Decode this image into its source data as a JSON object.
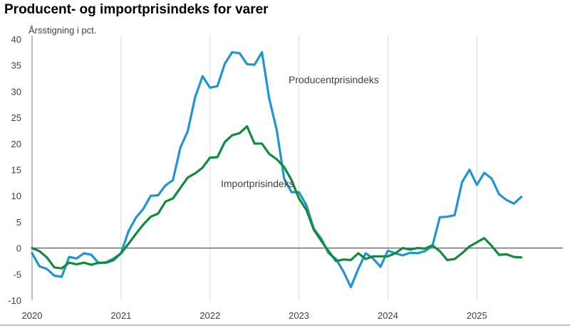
{
  "chart_data": {
    "type": "line",
    "title": "Producent- og importprisindeks for varer",
    "ylabel": "Årsstigning i pct.",
    "xlabel": "",
    "ylim": [
      -10,
      40
    ],
    "yticks": [
      "-10",
      "-5",
      "0",
      "5",
      "10",
      "15",
      "20",
      "25",
      "30",
      "35",
      "40"
    ],
    "xticks": [
      "2020",
      "2021",
      "2022",
      "2023",
      "2024",
      "2025"
    ],
    "x_start": "2020-01",
    "grid": "vertical year lines",
    "legend": "inline labels",
    "series": [
      {
        "name": "Producentprisindeks",
        "label": "Producentprisindeks",
        "color": "#1f96d3",
        "values": [
          -1.0,
          -3.5,
          -4.0,
          -5.3,
          -5.5,
          -1.7,
          -2.0,
          -1.0,
          -1.3,
          -2.9,
          -2.7,
          -2.0,
          -1.0,
          3.2,
          5.8,
          7.5,
          10.0,
          10.1,
          12.0,
          13.0,
          19.2,
          22.4,
          28.9,
          32.9,
          30.7,
          31.0,
          35.3,
          37.5,
          37.3,
          35.2,
          35.1,
          37.5,
          28.5,
          22.6,
          13.3,
          10.7,
          10.7,
          8.2,
          3.7,
          1.8,
          -1.0,
          -2.1,
          -4.5,
          -7.5,
          -4.0,
          -1.0,
          -2.0,
          -3.6,
          -0.5,
          -1.0,
          -1.4,
          -0.9,
          -1.0,
          -0.6,
          0.4,
          5.9,
          6.0,
          6.3,
          12.6,
          15.0,
          12.1,
          14.4,
          13.3,
          10.3,
          9.2,
          8.5,
          9.8
        ]
      },
      {
        "name": "Importprisindeks",
        "label": "Importprisindeks",
        "color": "#128a3c",
        "values": [
          0.0,
          -0.6,
          -1.8,
          -3.7,
          -3.9,
          -2.8,
          -3.1,
          -2.8,
          -3.2,
          -2.8,
          -2.8,
          -2.3,
          -1.0,
          0.8,
          2.7,
          4.5,
          6.0,
          6.6,
          8.9,
          9.5,
          11.5,
          13.5,
          14.3,
          15.4,
          17.3,
          17.4,
          20.3,
          21.6,
          22.0,
          23.3,
          20.0,
          20.0,
          18.0,
          17.0,
          15.5,
          13.0,
          9.5,
          7.3,
          3.5,
          1.4,
          -0.6,
          -2.5,
          -2.2,
          -2.3,
          -1.0,
          -2.1,
          -1.6,
          -1.6,
          -1.6,
          -1.0,
          0.0,
          -0.3,
          0.0,
          -0.1,
          0.5,
          -0.6,
          -2.3,
          -2.1,
          -1.0,
          0.3,
          1.1,
          1.9,
          0.4,
          -1.3,
          -1.2,
          -1.7,
          -1.8
        ]
      }
    ]
  }
}
